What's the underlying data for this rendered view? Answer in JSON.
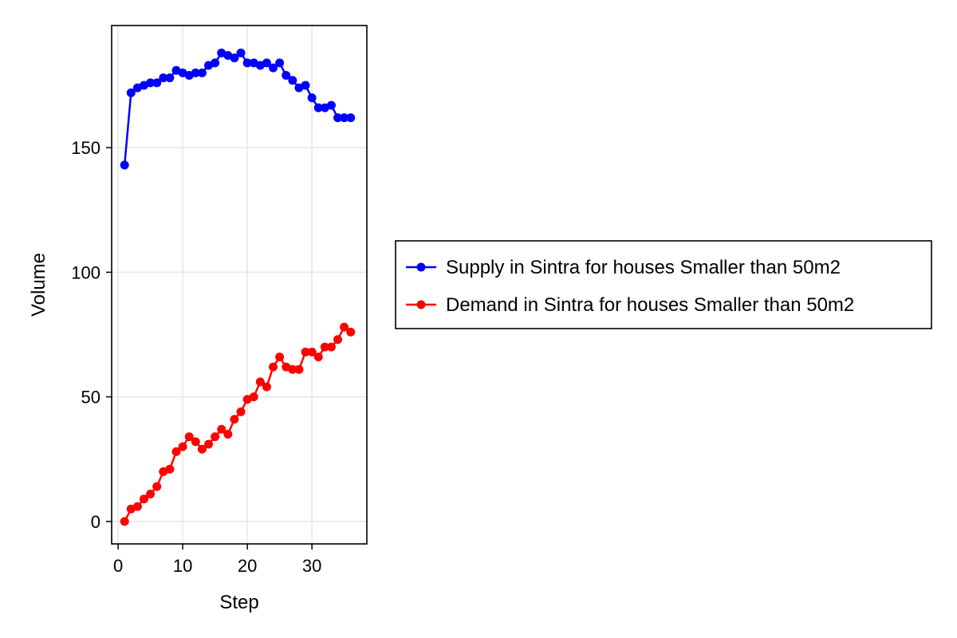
{
  "chart_data": {
    "type": "line",
    "title": "",
    "xlabel": "Step",
    "ylabel": "Volume",
    "xlim": [
      -1,
      38.5
    ],
    "ylim": [
      -9,
      199
    ],
    "xticks": [
      0,
      10,
      20,
      30
    ],
    "yticks": [
      0,
      50,
      100,
      150
    ],
    "grid": true,
    "legend_position": "right",
    "series": [
      {
        "name": "Supply in Sintra for houses Smaller than 50m2",
        "color": "#0000ff",
        "x": [
          1,
          2,
          3,
          4,
          5,
          6,
          7,
          8,
          9,
          10,
          11,
          12,
          13,
          14,
          15,
          16,
          17,
          18,
          19,
          20,
          21,
          22,
          23,
          24,
          25,
          26,
          27,
          28,
          29,
          30,
          31,
          32,
          33,
          34,
          35,
          36
        ],
        "values": [
          143,
          172,
          174,
          175,
          176,
          176,
          178,
          178,
          181,
          180,
          179,
          180,
          180,
          183,
          184,
          188,
          187,
          186,
          188,
          184,
          184,
          183,
          184,
          182,
          184,
          179,
          177,
          174,
          175,
          170,
          166,
          166,
          167,
          162,
          162,
          162
        ]
      },
      {
        "name": "Demand in Sintra for houses Smaller than 50m2",
        "color": "#ff0000",
        "x": [
          1,
          2,
          3,
          4,
          5,
          6,
          7,
          8,
          9,
          10,
          11,
          12,
          13,
          14,
          15,
          16,
          17,
          18,
          19,
          20,
          21,
          22,
          23,
          24,
          25,
          26,
          27,
          28,
          29,
          30,
          31,
          32,
          33,
          34,
          35,
          36
        ],
        "values": [
          0,
          5,
          6,
          9,
          11,
          14,
          20,
          21,
          28,
          30,
          34,
          32,
          29,
          31,
          34,
          37,
          35,
          41,
          44,
          49,
          50,
          56,
          54,
          62,
          66,
          62,
          61,
          61,
          68,
          68,
          66,
          70,
          70,
          73,
          78,
          76
        ]
      }
    ]
  }
}
